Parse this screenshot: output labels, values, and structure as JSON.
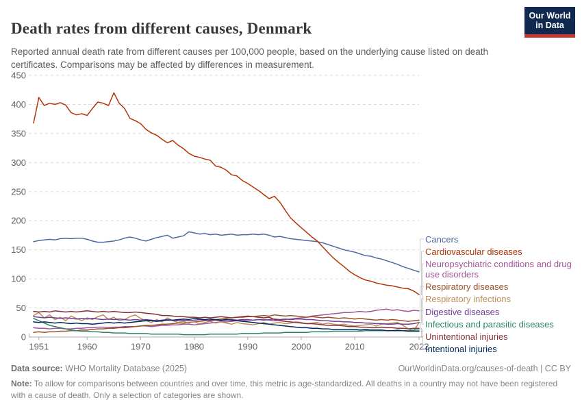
{
  "header": {
    "title": "Death rates from different causes, Denmark",
    "subtitle": "Reported annual death rate from different causes per 100,000 people, based on the underlying cause listed on death certificates. Comparisons may be affected by differences in measurement.",
    "logo_line1": "Our World",
    "logo_line2": "in Data",
    "logo_bg": "#12294F",
    "logo_bar": "#C13A2C"
  },
  "chart_data": {
    "type": "line",
    "x_start": 1950,
    "x_end": 2022,
    "x_ticks": [
      1951,
      1960,
      1970,
      1980,
      1990,
      2000,
      2010,
      2022
    ],
    "ylim": [
      0,
      450
    ],
    "y_ticks": [
      0,
      50,
      100,
      150,
      200,
      250,
      300,
      350,
      400,
      450
    ],
    "grid": "dashed horizontal",
    "legend_position": "right",
    "series": [
      {
        "name": "Cancers",
        "slug": "cancers",
        "color": "#4C6A9C",
        "values": [
          164,
          166,
          167,
          168,
          167,
          169,
          170,
          169,
          170,
          170,
          168,
          165,
          163,
          163,
          164,
          165,
          167,
          170,
          172,
          170,
          167,
          165,
          168,
          171,
          173,
          175,
          170,
          172,
          174,
          181,
          179,
          177,
          178,
          176,
          177,
          175,
          176,
          177,
          175,
          176,
          176,
          177,
          176,
          177,
          175,
          172,
          173,
          171,
          169,
          168,
          167,
          166,
          165,
          164,
          162,
          159,
          156,
          153,
          150,
          148,
          146,
          143,
          140,
          139,
          136,
          134,
          131,
          128,
          125,
          121,
          118,
          115,
          112
        ]
      },
      {
        "name": "Cardiovascular diseases",
        "slug": "cardiovascular-diseases",
        "color": "#B13507",
        "values": [
          368,
          412,
          398,
          402,
          400,
          403,
          399,
          386,
          382,
          384,
          381,
          393,
          404,
          402,
          398,
          420,
          402,
          393,
          376,
          372,
          367,
          357,
          351,
          347,
          340,
          334,
          338,
          330,
          324,
          316,
          311,
          309,
          306,
          304,
          294,
          292,
          287,
          279,
          277,
          269,
          264,
          258,
          252,
          245,
          238,
          242,
          232,
          218,
          205,
          196,
          188,
          180,
          172,
          165,
          155,
          145,
          136,
          128,
          121,
          113,
          107,
          102,
          98,
          96,
          93,
          91,
          89,
          88,
          86,
          84,
          83,
          79,
          73
        ]
      },
      {
        "name": "Neuropsychiatric conditions and drug use disorders",
        "slug": "neuropsychiatric",
        "color": "#A2559C",
        "values": [
          16,
          15,
          15,
          14,
          15,
          15,
          14,
          14,
          15,
          15,
          16,
          16,
          17,
          17,
          16,
          17,
          17,
          18,
          18,
          18,
          19,
          19,
          18,
          19,
          20,
          20,
          21,
          21,
          22,
          22,
          21,
          22,
          23,
          24,
          25,
          26,
          26,
          27,
          28,
          28,
          29,
          29,
          30,
          30,
          29,
          28,
          29,
          30,
          31,
          32,
          33,
          34,
          36,
          37,
          38,
          39,
          40,
          41,
          42,
          42,
          43,
          44,
          43,
          44,
          46,
          47,
          48,
          46,
          47,
          45,
          44,
          46,
          45
        ]
      },
      {
        "name": "Respiratory diseases",
        "slug": "respiratory-diseases",
        "color": "#9A5129",
        "values": [
          8,
          9,
          8,
          9,
          9,
          10,
          10,
          11,
          11,
          12,
          12,
          13,
          14,
          14,
          15,
          15,
          16,
          16,
          17,
          18,
          19,
          20,
          20,
          21,
          22,
          22,
          23,
          24,
          24,
          25,
          26,
          27,
          28,
          29,
          30,
          31,
          32,
          33,
          34,
          34,
          35,
          35,
          36,
          37,
          36,
          38,
          37,
          36,
          37,
          36,
          35,
          34,
          35,
          34,
          33,
          34,
          33,
          32,
          33,
          32,
          31,
          32,
          31,
          30,
          29,
          30,
          29,
          30,
          29,
          28,
          27,
          28,
          29
        ]
      },
      {
        "name": "Respiratory infections",
        "slug": "respiratory-infections",
        "color": "#BC8E5A",
        "values": [
          37,
          42,
          33,
          38,
          30,
          34,
          28,
          36,
          32,
          28,
          33,
          30,
          35,
          38,
          30,
          34,
          28,
          30,
          35,
          38,
          32,
          28,
          25,
          30,
          26,
          33,
          28,
          25,
          27,
          24,
          26,
          23,
          25,
          27,
          24,
          26,
          24,
          22,
          25,
          23,
          22,
          21,
          23,
          25,
          22,
          24,
          25,
          23,
          24,
          26,
          25,
          23,
          24,
          25,
          22,
          24,
          22,
          21,
          22,
          20,
          19,
          20,
          21,
          22,
          19,
          22,
          23,
          24,
          25,
          20,
          14,
          10,
          25
        ]
      },
      {
        "name": "Digestive diseases",
        "slug": "digestive-diseases",
        "color": "#6D3E91",
        "values": [
          35,
          34,
          33,
          34,
          33,
          32,
          33,
          32,
          31,
          32,
          31,
          32,
          31,
          30,
          31,
          30,
          31,
          30,
          29,
          30,
          29,
          30,
          29,
          28,
          29,
          30,
          29,
          28,
          29,
          28,
          29,
          30,
          29,
          28,
          29,
          28,
          29,
          30,
          29,
          30,
          30,
          29,
          30,
          29,
          30,
          31,
          30,
          31,
          30,
          31,
          31,
          30,
          30,
          29,
          28,
          28,
          27,
          27,
          26,
          26,
          25,
          25,
          24,
          24,
          23,
          23,
          22,
          22,
          23,
          22,
          22,
          23,
          25
        ]
      },
      {
        "name": "Infectious and parasitic diseases",
        "slug": "infectious-diseases",
        "color": "#2C8465",
        "values": [
          32,
          28,
          24,
          20,
          18,
          16,
          14,
          12,
          11,
          10,
          10,
          9,
          9,
          8,
          8,
          7,
          7,
          7,
          6,
          6,
          6,
          6,
          5,
          5,
          5,
          5,
          5,
          5,
          4,
          4,
          4,
          4,
          4,
          5,
          5,
          5,
          5,
          5,
          5,
          6,
          6,
          6,
          6,
          7,
          7,
          7,
          7,
          8,
          8,
          8,
          8,
          8,
          9,
          9,
          9,
          9,
          10,
          10,
          10,
          10,
          10,
          10,
          11,
          11,
          11,
          11,
          11,
          11,
          12,
          11,
          11,
          12,
          12
        ]
      },
      {
        "name": "Unintentional injuries",
        "slug": "unintentional-injuries",
        "color": "#883039",
        "values": [
          44,
          43,
          44,
          43,
          45,
          44,
          43,
          44,
          43,
          44,
          45,
          44,
          43,
          44,
          43,
          44,
          43,
          42,
          42,
          43,
          42,
          41,
          40,
          39,
          37,
          37,
          36,
          35,
          35,
          34,
          34,
          33,
          34,
          33,
          34,
          35,
          34,
          33,
          34,
          35,
          36,
          35,
          34,
          33,
          34,
          30,
          28,
          27,
          26,
          25,
          24,
          23,
          23,
          22,
          21,
          20,
          20,
          20,
          19,
          18,
          18,
          17,
          17,
          16,
          16,
          17,
          16,
          16,
          15,
          15,
          14,
          15,
          15
        ]
      },
      {
        "name": "Intentional injuries",
        "slug": "intentional-injuries",
        "color": "#00295B",
        "values": [
          26,
          25,
          26,
          25,
          24,
          25,
          24,
          23,
          24,
          23,
          23,
          22,
          23,
          24,
          25,
          24,
          25,
          24,
          25,
          26,
          27,
          28,
          28,
          27,
          28,
          29,
          29,
          30,
          31,
          30,
          32,
          31,
          30,
          31,
          30,
          29,
          30,
          29,
          28,
          27,
          26,
          25,
          24,
          23,
          22,
          21,
          20,
          19,
          18,
          17,
          16,
          16,
          15,
          15,
          14,
          14,
          13,
          13,
          13,
          13,
          13,
          12,
          13,
          12,
          12,
          12,
          11,
          11,
          11,
          11,
          10,
          10,
          10
        ]
      }
    ]
  },
  "footer": {
    "datasource_label": "Data source:",
    "datasource_value": " WHO Mortality Database (2025)",
    "link": "OurWorldinData.org/causes-of-death | CC BY",
    "note_label": "Note:",
    "note_value": " To allow for comparisons between countries and over time, this metric is age-standardized. All deaths in a country may not have been registered with a cause of death. Only a selection of categories are shown."
  }
}
